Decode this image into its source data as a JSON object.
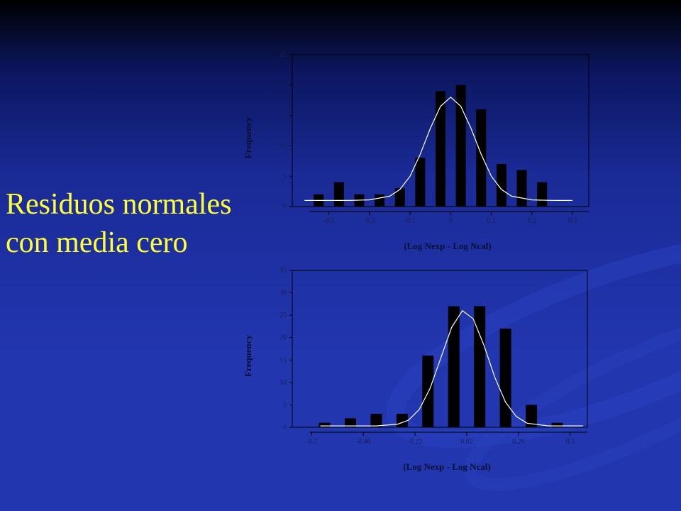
{
  "slide": {
    "lines": [
      "Residuos normales",
      "con media cero"
    ]
  },
  "chart_data": [
    {
      "type": "bar",
      "x_label": "(Log Nexp - Log Ncal)",
      "y_label": "Frequency",
      "x": [
        -0.325,
        -0.275,
        -0.225,
        -0.175,
        -0.125,
        -0.075,
        -0.025,
        0.025,
        0.075,
        0.125,
        0.175,
        0.225
      ],
      "values": [
        2,
        4,
        2,
        2,
        3,
        8,
        19,
        20,
        16,
        7,
        6,
        4
      ],
      "color": "#000000",
      "curve_x": [
        -0.36,
        -0.3,
        -0.25,
        -0.2,
        -0.15,
        -0.125,
        -0.1,
        -0.075,
        -0.05,
        -0.025,
        0,
        0.025,
        0.05,
        0.075,
        0.1,
        0.125,
        0.15,
        0.2,
        0.25,
        0.3
      ],
      "curve_values": [
        1,
        1,
        1,
        1.1,
        1.7,
        2.8,
        5,
        8.6,
        12.9,
        16.5,
        18,
        16.5,
        12.9,
        8.6,
        5,
        2.8,
        1.7,
        1.1,
        1,
        1
      ],
      "curve_color": "#ffffff",
      "xlim": [
        -0.39,
        0.34
      ],
      "xticks": [
        -0.3,
        -0.2,
        -0.1,
        0,
        0.1,
        0.2,
        0.3
      ],
      "ylim": [
        0,
        25
      ],
      "yticks": [
        0,
        5,
        10,
        15,
        20,
        25
      ]
    },
    {
      "type": "bar",
      "x_label": "(Log Nexp - Log Ncal)",
      "y_label": "Frequency",
      "x": [
        -0.64,
        -0.52,
        -0.4,
        -0.28,
        -0.16,
        -0.04,
        0.08,
        0.2,
        0.32,
        0.44
      ],
      "values": [
        1,
        2,
        3,
        3,
        16,
        27,
        27,
        22,
        5,
        1
      ],
      "color": "#000000",
      "curve_x": [
        -0.66,
        -0.5,
        -0.4,
        -0.3,
        -0.25,
        -0.2,
        -0.15,
        -0.1,
        -0.05,
        0,
        0.05,
        0.1,
        0.15,
        0.2,
        0.25,
        0.3,
        0.4,
        0.56
      ],
      "curve_values": [
        0.3,
        0.3,
        0.3,
        0.7,
        1.6,
        4,
        8.7,
        15.5,
        22.3,
        26,
        24.2,
        18.3,
        11.2,
        5.6,
        2.4,
        0.9,
        0.3,
        0.3
      ],
      "curve_color": "#ffffff",
      "xlim": [
        -0.79,
        0.58
      ],
      "xticks": [
        -0.7,
        -0.46,
        -0.22,
        0.02,
        0.26,
        0.5
      ],
      "ylim": [
        0,
        35
      ],
      "yticks": [
        0,
        5,
        10,
        15,
        20,
        25,
        30,
        35
      ]
    }
  ]
}
